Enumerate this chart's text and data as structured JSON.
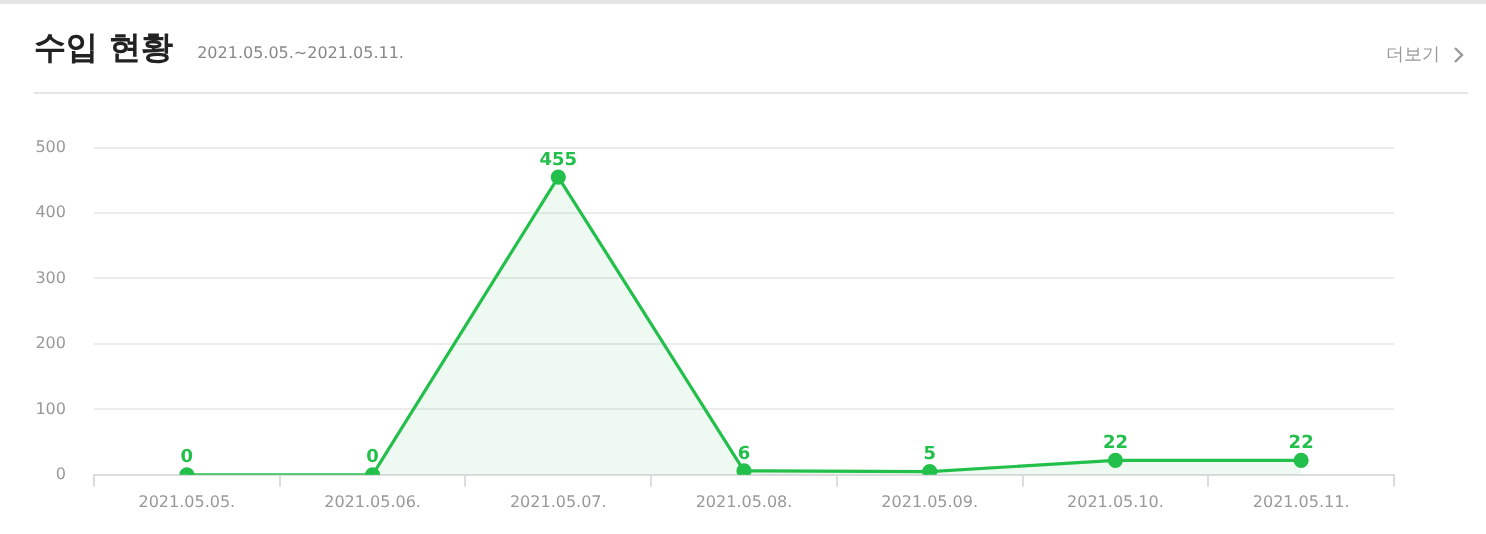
{
  "chart_data": {
    "type": "area",
    "title": "수입 현황",
    "subtitle": "2021.05.05.~2021.05.11.",
    "annotations": [
      "더보기"
    ],
    "categories": [
      "2021.05.05.",
      "2021.05.06.",
      "2021.05.07.",
      "2021.05.08.",
      "2021.05.09.",
      "2021.05.10.",
      "2021.05.11."
    ],
    "values": [
      0,
      0,
      455,
      6,
      5,
      22,
      22
    ],
    "color": "#22c04b",
    "ylim": [
      0,
      500
    ],
    "yticks": [
      0,
      100,
      200,
      300,
      400,
      500
    ],
    "grid": "y",
    "marker": "circle",
    "data_labels": true,
    "legend": false
  }
}
